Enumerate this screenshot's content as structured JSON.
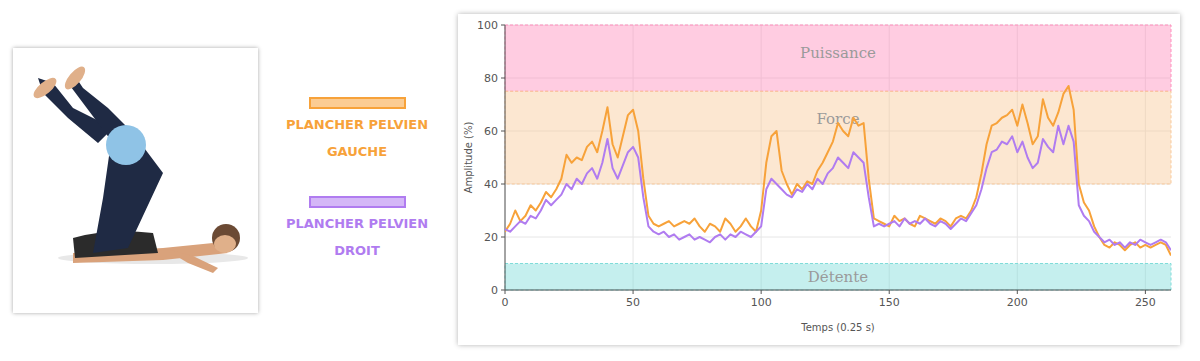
{
  "chart_data": {
    "type": "line",
    "ylabel": "Amplitude (%)",
    "xlabel": "Temps (0.25 s)",
    "xlim": [
      0,
      260
    ],
    "ylim": [
      0,
      100
    ],
    "xticks": [
      0,
      50,
      100,
      150,
      200,
      250
    ],
    "yticks": [
      0,
      20,
      40,
      60,
      80,
      100
    ],
    "grid": true,
    "annotations": [
      {
        "text": "Puissance",
        "y_range": [
          75,
          100
        ],
        "color": "#ff8fbd"
      },
      {
        "text": "Force",
        "y_range": [
          40,
          75
        ],
        "color": "#f9c99a"
      },
      {
        "text": "Détente",
        "y_range": [
          0,
          10
        ],
        "color": "#7fdcd9"
      }
    ],
    "x": [
      0,
      2,
      4,
      6,
      8,
      10,
      12,
      14,
      16,
      18,
      20,
      22,
      24,
      26,
      28,
      30,
      32,
      34,
      36,
      38,
      40,
      42,
      44,
      46,
      48,
      50,
      52,
      54,
      56,
      58,
      60,
      62,
      64,
      66,
      68,
      70,
      72,
      74,
      76,
      78,
      80,
      82,
      84,
      86,
      88,
      90,
      92,
      94,
      96,
      98,
      100,
      102,
      104,
      106,
      108,
      110,
      112,
      114,
      116,
      118,
      120,
      122,
      124,
      126,
      128,
      130,
      132,
      134,
      136,
      138,
      140,
      142,
      144,
      146,
      148,
      150,
      152,
      154,
      156,
      158,
      160,
      162,
      164,
      166,
      168,
      170,
      172,
      174,
      176,
      178,
      180,
      182,
      184,
      186,
      188,
      190,
      192,
      194,
      196,
      198,
      200,
      202,
      204,
      206,
      208,
      210,
      212,
      214,
      216,
      218,
      220,
      222,
      224,
      226,
      228,
      230,
      232,
      234,
      236,
      238,
      240,
      242,
      244,
      246,
      248,
      250,
      252,
      254,
      256,
      258,
      260
    ],
    "series": [
      {
        "name": "PLANCHER PELVIEN GAUCHE",
        "color": "#f7a23a",
        "values": [
          22,
          25,
          30,
          26,
          28,
          32,
          30,
          33,
          37,
          35,
          38,
          42,
          51,
          48,
          50,
          49,
          54,
          56,
          52,
          60,
          69,
          55,
          50,
          58,
          66,
          68,
          60,
          42,
          28,
          25,
          24,
          25,
          26,
          24,
          25,
          26,
          25,
          27,
          24,
          22,
          25,
          24,
          22,
          27,
          25,
          22,
          24,
          27,
          24,
          22,
          30,
          48,
          58,
          60,
          45,
          40,
          36,
          40,
          38,
          41,
          40,
          45,
          48,
          52,
          56,
          63,
          60,
          58,
          65,
          62,
          63,
          42,
          27,
          26,
          25,
          24,
          28,
          26,
          27,
          25,
          24,
          28,
          27,
          26,
          25,
          27,
          26,
          24,
          27,
          28,
          27,
          30,
          35,
          44,
          55,
          62,
          63,
          65,
          66,
          68,
          62,
          70,
          63,
          55,
          58,
          72,
          65,
          62,
          67,
          74,
          77,
          68,
          40,
          33,
          30,
          24,
          20,
          17,
          16,
          18,
          17,
          15,
          17,
          18,
          16,
          17,
          16,
          17,
          18,
          17,
          13
        ]
      },
      {
        "name": "PLANCHER PELVIEN DROIT",
        "color": "#b07cf0",
        "values": [
          23,
          22,
          24,
          26,
          25,
          28,
          27,
          30,
          34,
          32,
          34,
          36,
          40,
          38,
          42,
          40,
          44,
          46,
          42,
          48,
          57,
          46,
          42,
          47,
          52,
          54,
          50,
          35,
          24,
          22,
          21,
          22,
          20,
          21,
          19,
          20,
          21,
          19,
          20,
          19,
          18,
          20,
          21,
          19,
          21,
          20,
          22,
          21,
          20,
          22,
          24,
          38,
          42,
          40,
          38,
          36,
          35,
          38,
          37,
          40,
          38,
          42,
          40,
          44,
          46,
          50,
          48,
          46,
          52,
          50,
          48,
          35,
          24,
          25,
          24,
          25,
          26,
          24,
          27,
          25,
          26,
          25,
          27,
          25,
          24,
          26,
          25,
          23,
          25,
          27,
          26,
          29,
          32,
          38,
          46,
          52,
          53,
          56,
          55,
          58,
          52,
          56,
          50,
          46,
          48,
          57,
          54,
          52,
          62,
          55,
          62,
          56,
          32,
          28,
          26,
          22,
          20,
          18,
          19,
          17,
          18,
          16,
          18,
          17,
          19,
          18,
          17,
          18,
          19,
          18,
          15
        ]
      }
    ]
  }
}
